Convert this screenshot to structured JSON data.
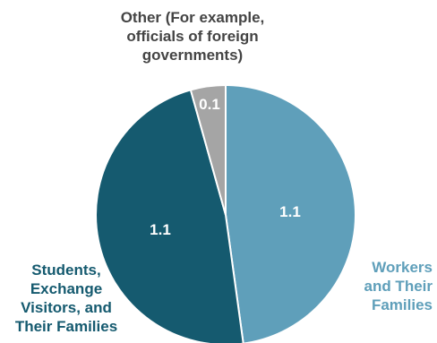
{
  "chart_data": {
    "type": "pie",
    "title": "",
    "slices": [
      {
        "name_lines": [
          "Workers",
          "and Their",
          "Families"
        ],
        "value": 1.1,
        "value_label": "1.1",
        "color": "#5f9fba"
      },
      {
        "name_lines": [
          "Students,",
          "Exchange",
          "Visitors, and",
          "Their Families"
        ],
        "value": 1.1,
        "value_label": "1.1",
        "color": "#155a6f"
      },
      {
        "name_lines": [
          "Other (For example,",
          "officials of foreign",
          "governments)"
        ],
        "value": 0.1,
        "value_label": "0.1",
        "color": "#a5a5a5"
      }
    ],
    "legend": "none"
  }
}
